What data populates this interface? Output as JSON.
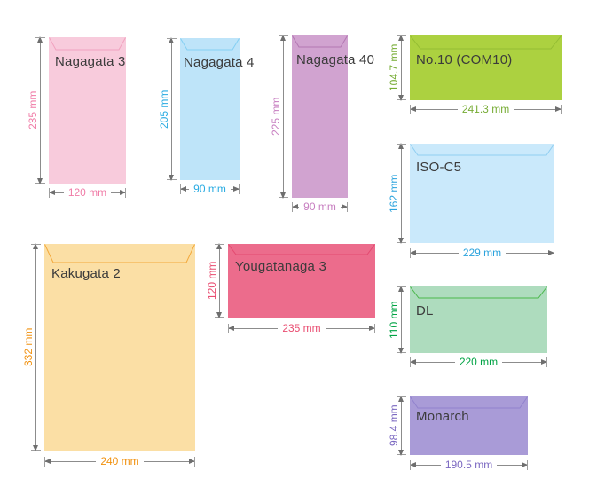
{
  "canvas": {
    "background": "#ffffff",
    "dimension_line_color": "#8c8c8c",
    "arrow_color": "#6e6e6e",
    "units": "mm"
  },
  "envelopes": [
    {
      "id": "nagagata3",
      "label": "Nagagata 3",
      "height_label": "235 mm",
      "width_label": "120 mm",
      "height_mm": 235,
      "width_mm": 120,
      "fill": "#f8cbdc",
      "flap_stroke": "#f1a2bf",
      "accent": "#f07ca7",
      "label_color": "#3b3b3b"
    },
    {
      "id": "nagagata4",
      "label": "Nagagata 4",
      "height_label": "205 mm",
      "width_label": "90 mm",
      "height_mm": 205,
      "width_mm": 90,
      "fill": "#bee4f9",
      "flap_stroke": "#84cff3",
      "accent": "#29abe2",
      "label_color": "#3b3b3b"
    },
    {
      "id": "nagagata40",
      "label": "Nagagata 40",
      "height_label": "225 mm",
      "width_label": "90 mm",
      "height_mm": 225,
      "width_mm": 90,
      "fill": "#d1a3d0",
      "flap_stroke": "#b377b2",
      "accent": "#c77ec0",
      "label_color": "#3b3b3b"
    },
    {
      "id": "no10",
      "label": "No.10 (COM10)",
      "height_label": "104.7 mm",
      "width_label": "241.3 mm",
      "height_mm": 104.7,
      "width_mm": 241.3,
      "fill": "#acd140",
      "flap_stroke": "#94bd33",
      "accent": "#77ac35",
      "label_color": "#3b3b3b"
    },
    {
      "id": "isoc5",
      "label": "ISO-C5",
      "height_label": "162 mm",
      "width_label": "229 mm",
      "height_mm": 162,
      "width_mm": 229,
      "fill": "#cae9fb",
      "flap_stroke": "#90cef1",
      "accent": "#2ba3dd",
      "label_color": "#3b3b3b"
    },
    {
      "id": "kakugata2",
      "label": "Kakugata 2",
      "height_label": "332 mm",
      "width_label": "240 mm",
      "height_mm": 332,
      "width_mm": 240,
      "fill": "#fbdfa5",
      "flap_stroke": "#f3a93c",
      "accent": "#f1910f",
      "label_color": "#3b3b3b"
    },
    {
      "id": "yougatanaga3",
      "label": "Yougatanaga 3",
      "height_label": "120 mm",
      "width_label": "235 mm",
      "height_mm": 120,
      "width_mm": 235,
      "fill": "#ec6c8c",
      "flap_stroke": "#e34a70",
      "accent": "#e94d71",
      "label_color": "#3b3b3b"
    },
    {
      "id": "dl",
      "label": "DL",
      "height_label": "110 mm",
      "width_label": "220 mm",
      "height_mm": 110,
      "width_mm": 220,
      "fill": "#aedcbe",
      "flap_stroke": "#4ab74b",
      "accent": "#00a344",
      "label_color": "#3b3b3b"
    },
    {
      "id": "monarch",
      "label": "Monarch",
      "height_label": "98.4 mm",
      "width_label": "190.5 mm",
      "height_mm": 98.4,
      "width_mm": 190.5,
      "fill": "#a99bd7",
      "flap_stroke": "#9182cd",
      "accent": "#7b68c1",
      "label_color": "#3b3b3b"
    }
  ]
}
